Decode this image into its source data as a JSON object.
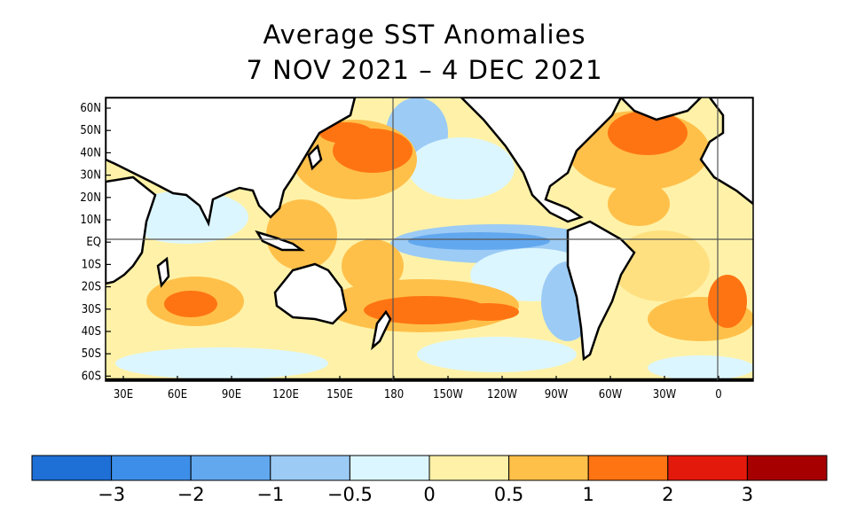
{
  "title_line1": "Average SST Anomalies",
  "title_line2": "7 NOV 2021 – 4 DEC 2021",
  "lat_labels": [
    "60N",
    "50N",
    "40N",
    "30N",
    "20N",
    "10N",
    "EQ",
    "10S",
    "20S",
    "30S",
    "40S",
    "50S",
    "60S"
  ],
  "lon_labels": [
    "30E",
    "60E",
    "90E",
    "120E",
    "150E",
    "180",
    "150W",
    "120W",
    "90W",
    "60W",
    "30W",
    "0"
  ],
  "colorbar": {
    "colors": [
      "#1e6fd6",
      "#3d8ee8",
      "#62a8ef",
      "#9ccbf5",
      "#dcf6ff",
      "#fff2a8",
      "#ffc04a",
      "#ff7412",
      "#e31a0b",
      "#a60000"
    ],
    "labels": [
      "−3",
      "−2",
      "−1",
      "−0.5",
      "0",
      "0.5",
      "1",
      "2",
      "3"
    ]
  }
}
